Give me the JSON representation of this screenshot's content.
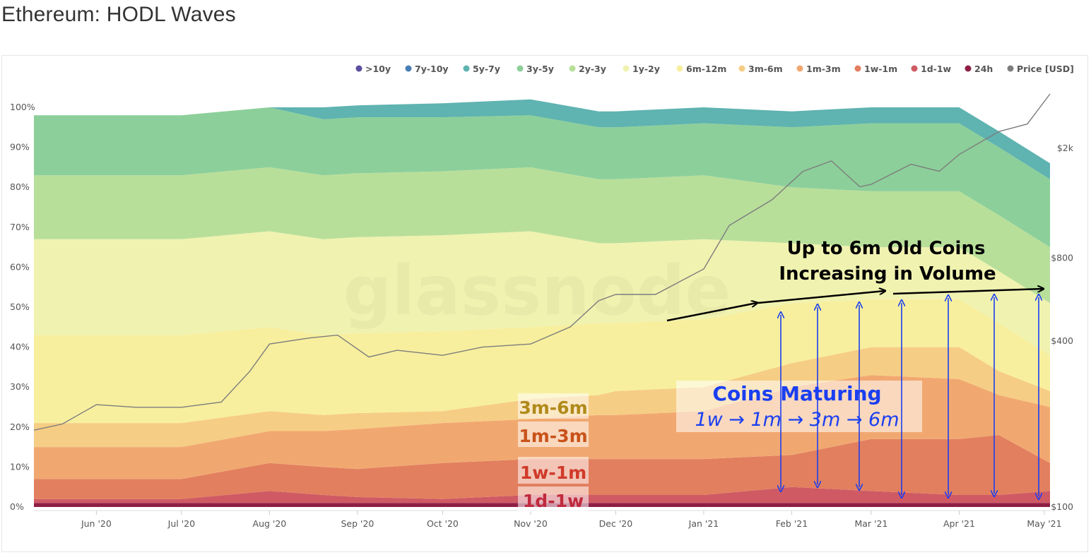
{
  "page": {
    "title": "Ethereum: HODL Waves",
    "watermark": "glassnode"
  },
  "colors": {
    ">10y": "#5a4fa0",
    "7y-10y": "#4a7fb5",
    "5y-7y": "#5fb3b0",
    "3y-5y": "#8ccf9a",
    "2y-3y": "#b8df9a",
    "1y-2y": "#f0f2b0",
    "6m-12m": "#f7ef9e",
    "3m-6m": "#f6cd84",
    "1m-3m": "#f1a870",
    "1w-1m": "#e27f5f",
    "1d-1w": "#cf5a64",
    "24h": "#8f1f46",
    "Price [USD]": "#7d7d7d"
  },
  "chart_data": {
    "type": "area",
    "stacked": true,
    "x": [
      "2020-05-10",
      "2020-06-01",
      "2020-07-01",
      "2020-08-01",
      "2020-08-20",
      "2020-09-01",
      "2020-10-01",
      "2020-11-01",
      "2020-11-25",
      "2020-12-01",
      "2021-01-01",
      "2021-02-01",
      "2021-03-01",
      "2021-04-01",
      "2021-04-15",
      "2021-05-03"
    ],
    "x_ticks": [
      "Jun '20",
      "Jul '20",
      "Aug '20",
      "Sep '20",
      "Oct '20",
      "Nov '20",
      "Dec '20",
      "Jan '21",
      "Feb '21",
      "Mar '21",
      "Apr '21",
      "May '21"
    ],
    "y_left_ticks": [
      "0%",
      "10%",
      "20%",
      "30%",
      "40%",
      "50%",
      "60%",
      "70%",
      "80%",
      "90%",
      "100%"
    ],
    "y_right_ticks": [
      "$100",
      "$400",
      "$800",
      "$2k"
    ],
    "ylim": [
      0,
      100
    ],
    "y_right_scale": "log",
    "legend_position": "top-right",
    "series": [
      {
        "name": "24h",
        "values": [
          1,
          1,
          1,
          1,
          1,
          1,
          1,
          1,
          1,
          1,
          1,
          1,
          1,
          1,
          1,
          1
        ]
      },
      {
        "name": "1d-1w",
        "values": [
          1,
          1,
          1,
          3,
          2,
          1.5,
          1,
          2,
          2,
          2,
          2,
          4,
          3,
          2,
          2,
          3
        ]
      },
      {
        "name": "1w-1m",
        "values": [
          5,
          5,
          5,
          7,
          7,
          7,
          9,
          9,
          9,
          9,
          9,
          8,
          13,
          14,
          15,
          7
        ]
      },
      {
        "name": "1m-3m",
        "values": [
          8,
          8,
          8,
          8,
          9,
          10,
          10,
          10,
          11,
          11,
          12,
          17,
          16,
          15,
          10,
          14
        ]
      },
      {
        "name": "3m-6m",
        "values": [
          6,
          6,
          6,
          5,
          4,
          4,
          3,
          5,
          5,
          6,
          6,
          6,
          7,
          8,
          6,
          4
        ]
      },
      {
        "name": "6m-12m",
        "values": [
          22,
          22,
          22,
          21,
          20,
          20,
          20,
          18,
          18,
          17,
          17,
          15,
          12,
          12,
          12,
          9
        ]
      },
      {
        "name": "1y-2y",
        "values": [
          24,
          24,
          24,
          24,
          24,
          24,
          24,
          24,
          20,
          20,
          20,
          15,
          13,
          13,
          13,
          13
        ]
      },
      {
        "name": "2y-3y",
        "values": [
          16,
          16,
          16,
          16,
          16,
          16,
          16,
          16,
          16,
          16,
          16,
          14,
          14,
          14,
          14,
          14
        ]
      },
      {
        "name": "3y-5y",
        "values": [
          15,
          15,
          15,
          15,
          14,
          14,
          13.5,
          13,
          13,
          13,
          13,
          15,
          17,
          17,
          17,
          17
        ]
      },
      {
        "name": "5y-7y",
        "values": [
          0,
          0,
          0,
          0,
          3,
          3,
          3.5,
          4,
          4,
          4,
          4,
          4,
          4,
          4,
          4,
          4
        ]
      },
      {
        "name": "7y-10y",
        "values": [
          0,
          0,
          0,
          0,
          0,
          0,
          0,
          0,
          0,
          0,
          0,
          0,
          0,
          0,
          0,
          0
        ]
      },
      {
        "name": ">10y",
        "values": [
          0,
          0,
          0,
          0,
          0,
          0,
          0,
          0,
          0,
          0,
          0,
          0,
          0,
          0,
          0,
          0
        ]
      }
    ],
    "price": {
      "name": "Price [USD]",
      "x": [
        "2020-05-10",
        "2020-05-20",
        "2020-06-01",
        "2020-06-15",
        "2020-07-01",
        "2020-07-15",
        "2020-07-25",
        "2020-08-01",
        "2020-08-15",
        "2020-08-25",
        "2020-09-05",
        "2020-09-15",
        "2020-10-01",
        "2020-10-15",
        "2020-11-01",
        "2020-11-15",
        "2020-11-25",
        "2020-12-01",
        "2020-12-15",
        "2021-01-01",
        "2021-01-10",
        "2021-01-25",
        "2021-02-05",
        "2021-02-15",
        "2021-02-25",
        "2021-03-01",
        "2021-03-15",
        "2021-03-25",
        "2021-04-01",
        "2021-04-15",
        "2021-04-25",
        "2021-05-03"
      ],
      "values": [
        190,
        200,
        235,
        230,
        230,
        240,
        310,
        390,
        410,
        420,
        350,
        370,
        355,
        380,
        390,
        450,
        560,
        590,
        590,
        730,
        1050,
        1300,
        1650,
        1800,
        1450,
        1480,
        1750,
        1650,
        1900,
        2300,
        2450,
        3150
      ]
    },
    "annotations": [
      {
        "text": "3m-6m",
        "color": "#b08a1a"
      },
      {
        "text": "1m-3m",
        "color": "#c8531a"
      },
      {
        "text": "1w-1m",
        "color": "#d03a2a"
      },
      {
        "text": "1d-1w",
        "color": "#c02a3e"
      },
      {
        "text": "Coins Maturing",
        "color": "#1a3ff0"
      },
      {
        "text": "1w → 1m → 3m → 6m",
        "color": "#1a3ff0"
      },
      {
        "text": "Up to 6m Old Coins",
        "color": "#000000"
      },
      {
        "text": "Increasing in Volume",
        "color": "#000000"
      }
    ]
  }
}
